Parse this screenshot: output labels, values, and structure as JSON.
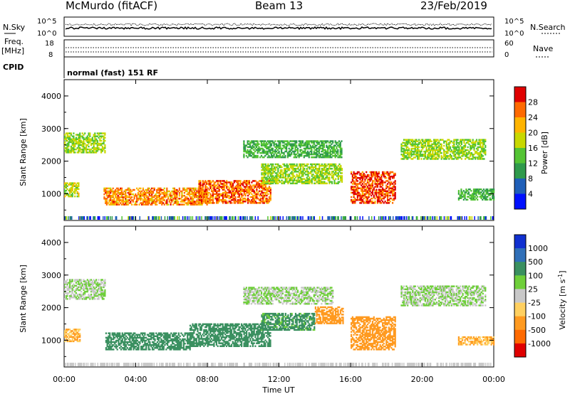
{
  "header": {
    "station": "McMurdo (fitACF)",
    "beam": "Beam 13",
    "date": "23/Feb/2019"
  },
  "top_panels": {
    "nsky_label": "N.Sky",
    "nsky_ticks": [
      "10^5",
      "10^0"
    ],
    "nsearch_label": "N.Search",
    "nsearch_ticks": [
      "10^5",
      "10^0"
    ],
    "freq_label": "Freq.",
    "freq_unit": "[MHz]",
    "freq_ticks": [
      "18",
      "8"
    ],
    "nave_label": "Nave",
    "nave_ticks": [
      "60",
      "0"
    ],
    "cpid_label": "CPID",
    "cpid_text": "normal (fast) 151 RF"
  },
  "chart_data": [
    {
      "type": "heatmap",
      "name": "power",
      "ylabel": "Slant Range [km]",
      "xlabel": "",
      "yticks": [
        "4000",
        "3000",
        "2000",
        "1000"
      ],
      "ylim": [
        180,
        4500
      ],
      "xlim": [
        0,
        24
      ],
      "colorbar_label": "Power [dB]",
      "colorbar_ticks": [
        "28",
        "24",
        "20",
        "16",
        "12",
        "8",
        "4"
      ],
      "colorbar_colors": [
        "#e00000",
        "#ff6a00",
        "#ffb400",
        "#c8d800",
        "#54c434",
        "#2f9a4c",
        "#1f5fb8",
        "#0010ff"
      ],
      "echo_bands": [
        {
          "t0": 0.0,
          "t1": 2.3,
          "r0": 2250,
          "r1": 2850,
          "level": 12
        },
        {
          "t0": 0.0,
          "t1": 0.8,
          "r0": 900,
          "r1": 1350,
          "level": 14
        },
        {
          "t0": 2.2,
          "t1": 8.0,
          "r0": 650,
          "r1": 1150,
          "level": 20
        },
        {
          "t0": 7.5,
          "t1": 11.5,
          "r0": 700,
          "r1": 1400,
          "level": 22
        },
        {
          "t0": 11.0,
          "t1": 15.5,
          "r0": 1300,
          "r1": 1900,
          "level": 12
        },
        {
          "t0": 16.0,
          "t1": 18.5,
          "r0": 700,
          "r1": 1650,
          "level": 24
        },
        {
          "t0": 18.8,
          "t1": 23.5,
          "r0": 2050,
          "r1": 2650,
          "level": 12
        },
        {
          "t0": 10.0,
          "t1": 15.5,
          "r0": 2100,
          "r1": 2600,
          "level": 8
        },
        {
          "t0": 22.0,
          "t1": 24.0,
          "r0": 800,
          "r1": 1150,
          "level": 8
        }
      ]
    },
    {
      "type": "heatmap",
      "name": "velocity",
      "ylabel": "Slant Range [km]",
      "xlabel": "Time UT",
      "xticks": [
        "00:00",
        "04:00",
        "08:00",
        "12:00",
        "16:00",
        "20:00",
        "00:00"
      ],
      "yticks": [
        "4000",
        "3000",
        "2000",
        "1000"
      ],
      "ylim": [
        180,
        4500
      ],
      "xlim": [
        0,
        24
      ],
      "colorbar_label": "Velocity [m s",
      "colorbar_label_sup": "-1",
      "colorbar_label_end": "]",
      "colorbar_ticks": [
        "1000",
        "500",
        "100",
        "25",
        "-25",
        "-100",
        "-500",
        "-1000"
      ],
      "colorbar_colors": [
        "#1030d0",
        "#2f6fb8",
        "#3a9060",
        "#6fcf3a",
        "#c8c8c8",
        "#ffd060",
        "#ff9a20",
        "#ff6a00",
        "#e00000"
      ],
      "echo_bands": [
        {
          "t0": 0.0,
          "t1": 2.3,
          "r0": 2250,
          "r1": 2850,
          "level": 25
        },
        {
          "t0": 0.0,
          "t1": 0.9,
          "r0": 950,
          "r1": 1350,
          "level": -100
        },
        {
          "t0": 2.3,
          "t1": 7.0,
          "r0": 700,
          "r1": 1200,
          "level": 300
        },
        {
          "t0": 7.0,
          "t1": 11.5,
          "r0": 800,
          "r1": 1500,
          "level": 150
        },
        {
          "t0": 11.0,
          "t1": 14.0,
          "r0": 1300,
          "r1": 1800,
          "level": 120
        },
        {
          "t0": 14.0,
          "t1": 15.6,
          "r0": 1500,
          "r1": 2000,
          "level": -200
        },
        {
          "t0": 16.0,
          "t1": 18.5,
          "r0": 700,
          "r1": 1700,
          "level": -200
        },
        {
          "t0": 18.8,
          "t1": 23.5,
          "r0": 2050,
          "r1": 2650,
          "level": 25
        },
        {
          "t0": 10.0,
          "t1": 15.0,
          "r0": 2100,
          "r1": 2600,
          "level": 25
        },
        {
          "t0": 22.0,
          "t1": 24.0,
          "r0": 850,
          "r1": 1100,
          "level": -100
        }
      ]
    }
  ]
}
